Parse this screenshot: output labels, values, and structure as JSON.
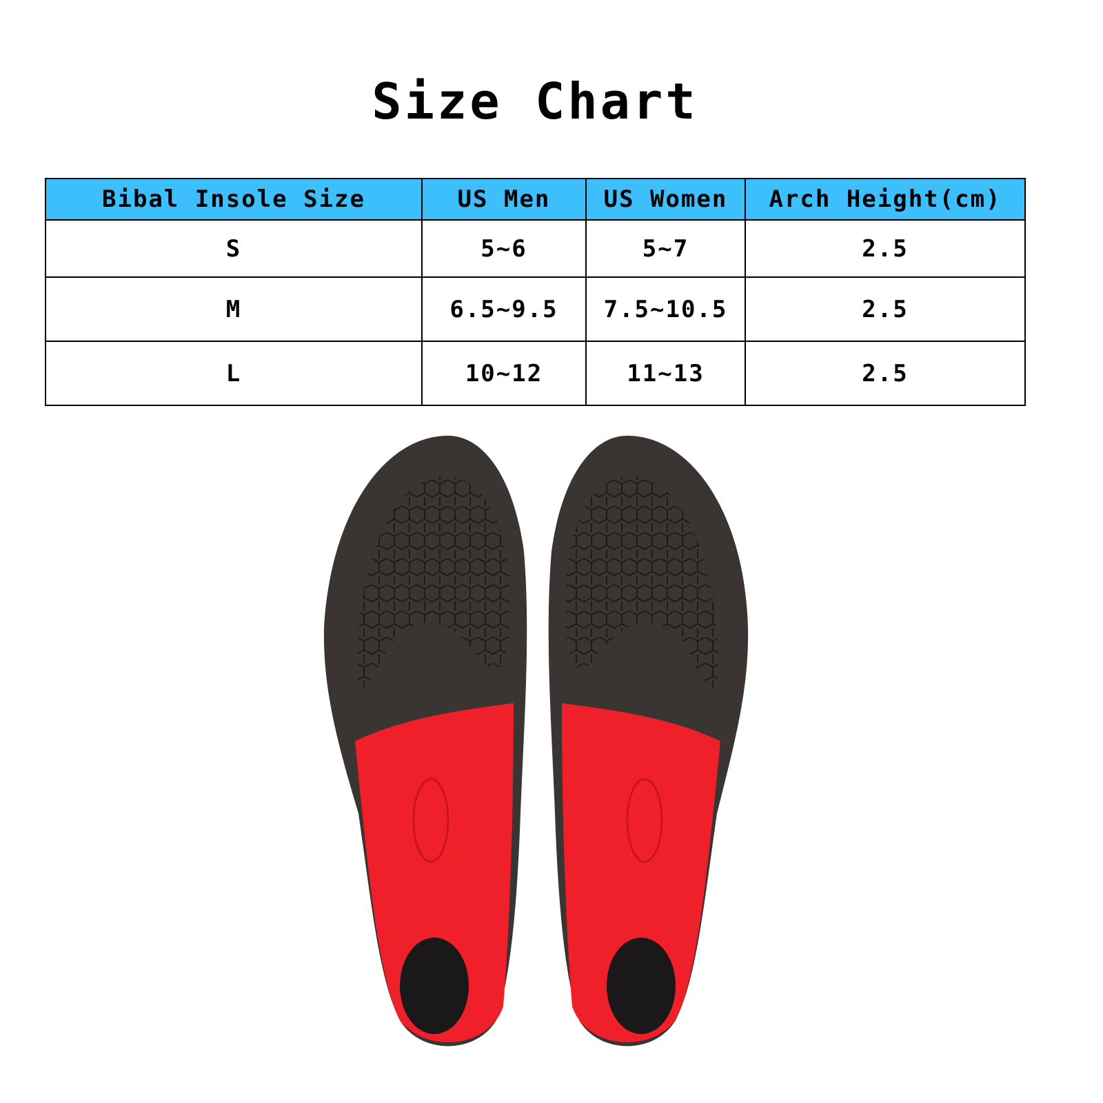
{
  "title": "Size Chart",
  "table": {
    "headers": [
      "Bibal Insole Size",
      "US Men",
      "US Women",
      "Arch Height(cm)"
    ],
    "rows": [
      [
        "S",
        "5~6",
        "5~7",
        "2.5"
      ],
      [
        "M",
        "6.5~9.5",
        "7.5~10.5",
        "2.5"
      ],
      [
        "L",
        "10~12",
        "11~13",
        "2.5"
      ]
    ],
    "header_color": "#3dbffc"
  },
  "image": {
    "subject": "insoles-pair",
    "colors": {
      "forefoot": "#3a3532",
      "heel": "#f0202a"
    }
  }
}
